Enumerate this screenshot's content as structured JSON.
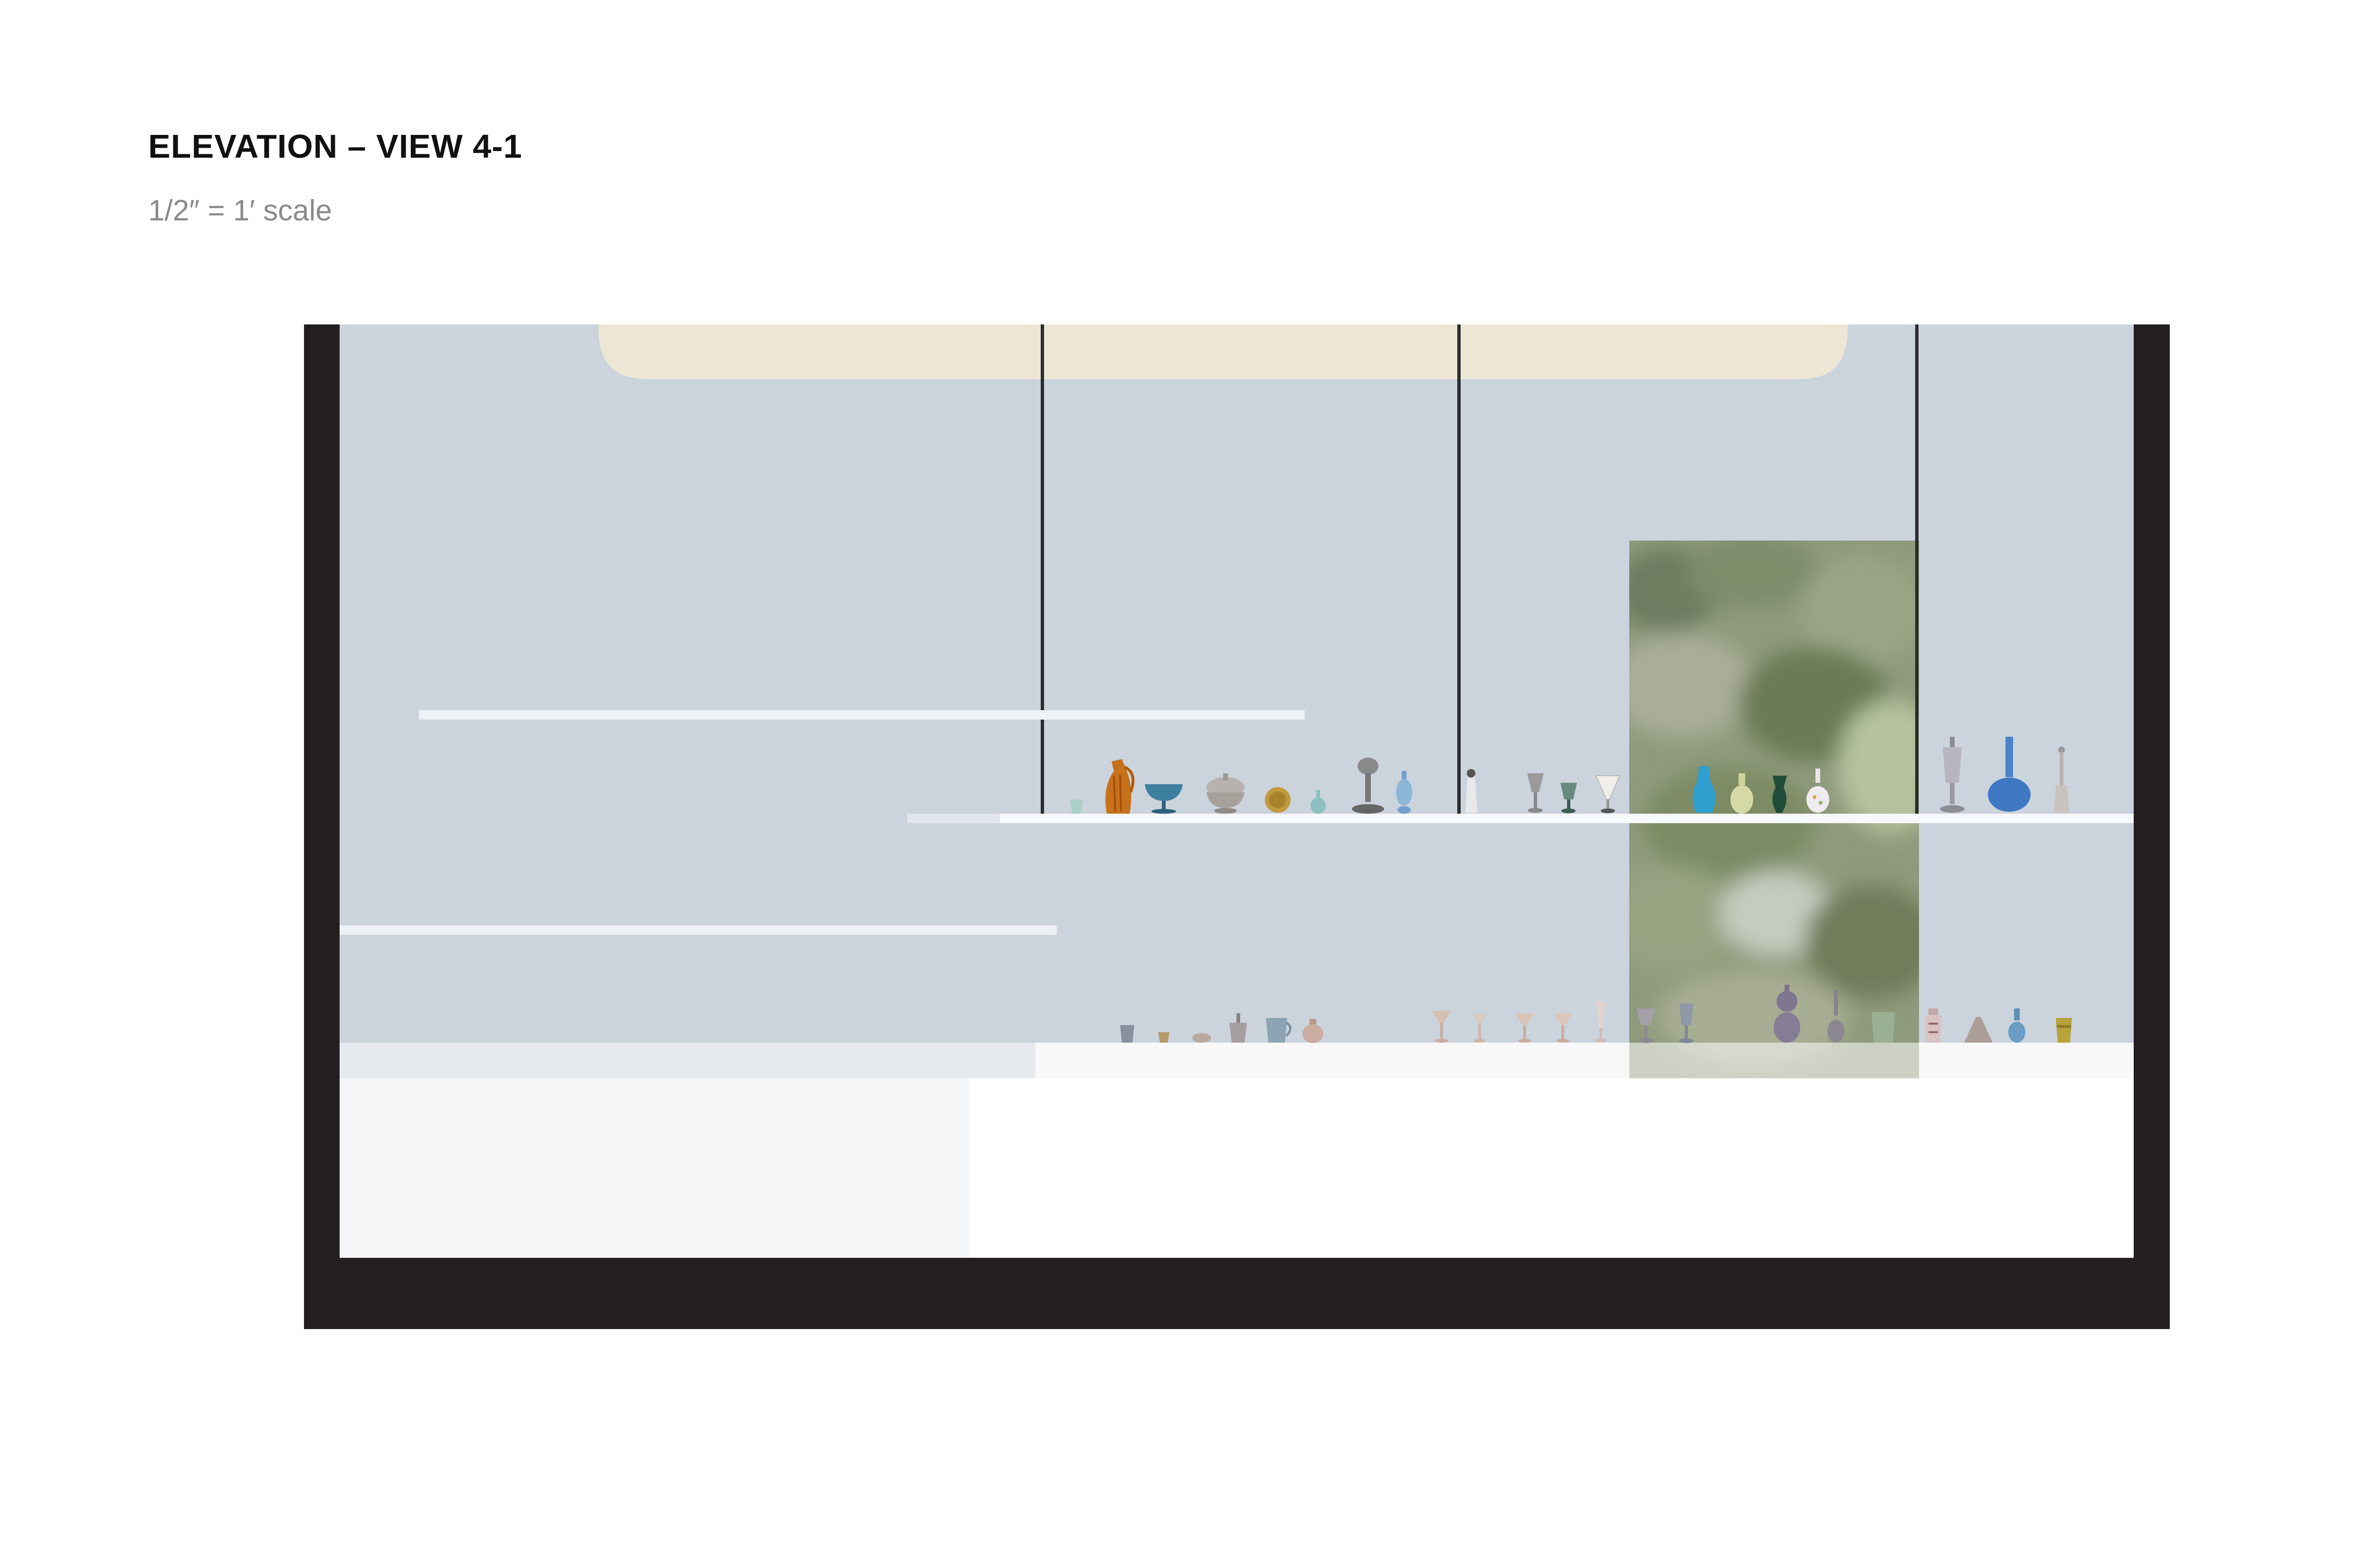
{
  "header": {
    "title": "ELEVATION – VIEW 4-1",
    "scale": "1/2″ = 1′ scale"
  },
  "colors": {
    "frame": "#231f20",
    "wall": "#cbd3dd",
    "ceiling_light": "#ede6d4",
    "shelf": "#f2f5f8",
    "plinth_left": "#f4f5f7",
    "plinth_right": "#ffffff",
    "window_image": "#8a9a78",
    "rod": "#2b2b2b"
  },
  "elements": {
    "ceiling_light": "ceiling-light-panel",
    "suspension_rods": [
      "suspension-rod",
      "suspension-rod",
      "suspension-rod"
    ],
    "window": "window-with-foliage-view",
    "upper_vessels": [
      "small-cup-icon",
      "amber-pitcher-icon",
      "blue-bowl-icon",
      "covered-dish-icon",
      "gold-plate-icon",
      "small-flask-icon",
      "silver-lamp-icon",
      "blue-bottle-icon",
      "white-shaker-icon",
      "goblet-icon",
      "green-goblet-icon",
      "cone-glass-icon",
      "turquoise-vase-icon",
      "yellow-vase-icon",
      "green-vase-icon",
      "white-jug-icon",
      "tall-covered-goblet-icon",
      "blue-bottle-vase-icon",
      "slim-bottle-icon"
    ],
    "lower_vessels": [
      "tumbler-icon",
      "small-cup-icon",
      "small-dish-icon",
      "ewer-icon",
      "mug-icon",
      "jar-icon",
      "stemmed-glass-icon",
      "stemmed-glass-icon",
      "stemmed-glass-icon",
      "stemmed-glass-icon",
      "flute-icon",
      "goblet-icon",
      "goblet-icon",
      "purple-double-gourd-icon",
      "bud-vase-icon",
      "green-pitcher-icon",
      "painted-jar-icon",
      "flask-icon",
      "blue-vase-icon",
      "yellow-beaker-icon"
    ]
  }
}
